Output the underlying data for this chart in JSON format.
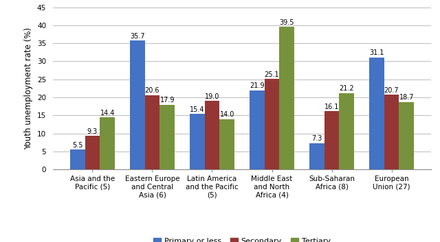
{
  "categories": [
    "Asia and the\nPacific (5)",
    "Eastern Europe\nand Central\nAsia (6)",
    "Latin America\nand the Pacific\n(5)",
    "Middle East\nand North\nAfrica (4)",
    "Sub-Saharan\nAfrica (8)",
    "European\nUnion (27)"
  ],
  "series": {
    "Primary or less": [
      5.5,
      35.7,
      15.4,
      21.9,
      7.3,
      31.1
    ],
    "Secondary": [
      9.3,
      20.6,
      19.0,
      25.1,
      16.1,
      20.7
    ],
    "Tertiary": [
      14.4,
      17.9,
      14.0,
      39.5,
      21.2,
      18.7
    ]
  },
  "colors": {
    "Primary or less": "#4472C4",
    "Secondary": "#943634",
    "Tertiary": "#76923C"
  },
  "ylabel": "Youth unemployment rate (%)",
  "ylim": [
    0,
    45
  ],
  "yticks": [
    0,
    5,
    10,
    15,
    20,
    25,
    30,
    35,
    40,
    45
  ],
  "bar_width": 0.25,
  "background_color": "#FFFFFF",
  "grid_color": "#BBBBBB",
  "label_fontsize": 7.0,
  "axis_fontsize": 8.5,
  "tick_fontsize": 7.5,
  "legend_fontsize": 8.0
}
